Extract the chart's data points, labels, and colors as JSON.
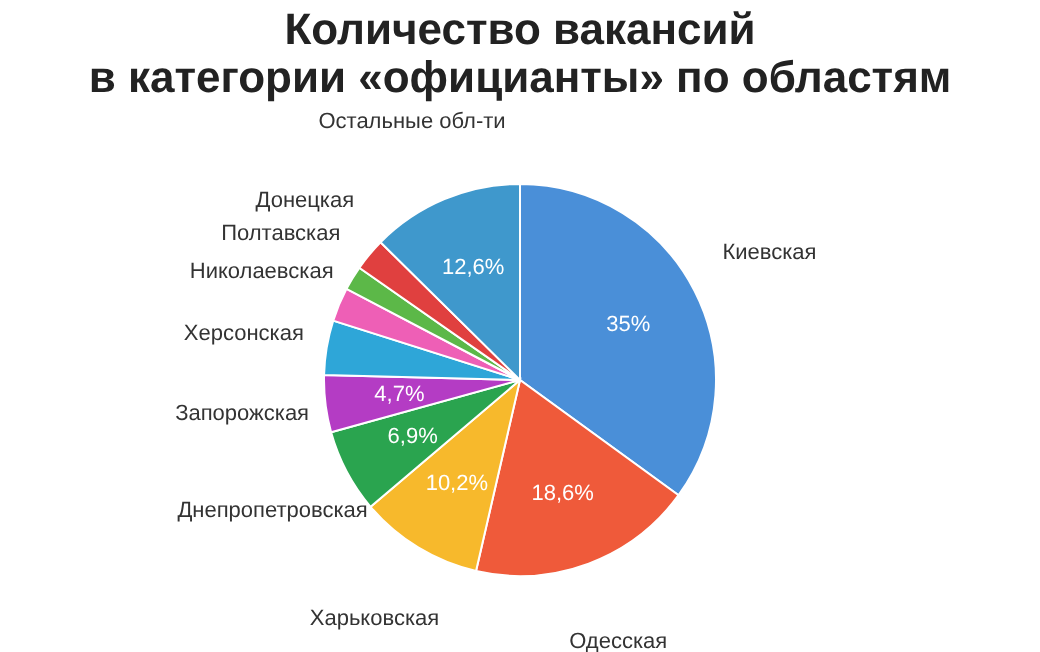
{
  "chart_data": {
    "type": "pie",
    "title": [
      "Количество вакансий",
      "в категории «официанты» по областям"
    ],
    "categories": [
      "Киевская",
      "Одесская",
      "Харьковская",
      "Днепропетровская",
      "Запорожская",
      "Херсонская",
      "Николаевская",
      "Полтавская",
      "Донецкая",
      "Остальные обл-ти"
    ],
    "values": [
      35,
      18.6,
      10.2,
      6.9,
      4.7,
      4.5,
      2.8,
      2.0,
      2.7,
      12.6
    ],
    "value_labels": [
      "35%",
      "18,6%",
      "10,2%",
      "6,9%",
      "4,7%",
      null,
      null,
      null,
      null,
      "12,6%"
    ],
    "colors": [
      "#4a8fd8",
      "#ef5a3a",
      "#f7b92c",
      "#2aa44f",
      "#b43cc4",
      "#2ea6d8",
      "#ee5fb6",
      "#5cb848",
      "#e0403f",
      "#3f98cc"
    ],
    "legend": false
  }
}
